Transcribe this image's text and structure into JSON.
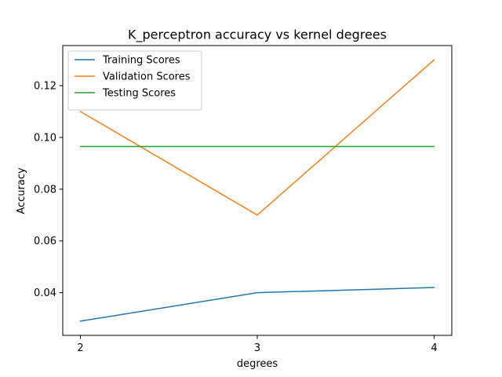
{
  "chart_data": {
    "type": "line",
    "title": "K_perceptron accuracy vs kernel degrees",
    "xlabel": "degrees",
    "ylabel": "Accuracy",
    "x": [
      2,
      3,
      4
    ],
    "x_ticks": [
      "2",
      "3",
      "4"
    ],
    "y_ticks": [
      "0.04",
      "0.06",
      "0.08",
      "0.10",
      "0.12"
    ],
    "xlim": [
      1.9,
      4.1
    ],
    "ylim": [
      0.0235,
      0.1355
    ],
    "grid": false,
    "legend_position": "top-left",
    "series": [
      {
        "name": "Training Scores",
        "color": "#1f77b4",
        "values": [
          0.029,
          0.04,
          0.042
        ]
      },
      {
        "name": "Validation Scores",
        "color": "#ff7f0e",
        "values": [
          0.11,
          0.07,
          0.13
        ]
      },
      {
        "name": "Testing Scores",
        "color": "#2ca02c",
        "values": [
          0.0965,
          0.0965,
          0.0965
        ]
      }
    ]
  }
}
